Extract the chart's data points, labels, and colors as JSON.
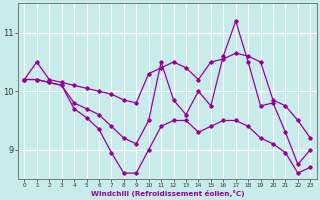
{
  "xlabel": "Windchill (Refroidissement éolien,°C)",
  "background_color": "#c8ecec",
  "line_color": "#990099",
  "grid_color": "#ffffff",
  "xlim": [
    -0.5,
    23.5
  ],
  "ylim": [
    8.5,
    11.5
  ],
  "yticks": [
    9,
    10,
    11
  ],
  "xticks": [
    0,
    1,
    2,
    3,
    4,
    5,
    6,
    7,
    8,
    9,
    10,
    11,
    12,
    13,
    14,
    15,
    16,
    17,
    18,
    19,
    20,
    21,
    22,
    23
  ],
  "series": [
    [
      10.2,
      10.5,
      10.2,
      10.15,
      10.1,
      10.05,
      10.0,
      9.95,
      9.85,
      9.8,
      10.3,
      10.4,
      10.5,
      10.4,
      10.2,
      10.5,
      10.55,
      10.65,
      10.6,
      10.5,
      9.85,
      9.75,
      9.5,
      9.2
    ],
    [
      10.2,
      10.2,
      10.15,
      10.1,
      9.8,
      9.7,
      9.6,
      9.4,
      9.2,
      9.1,
      9.5,
      10.5,
      9.85,
      9.6,
      10.0,
      9.75,
      10.6,
      11.2,
      10.5,
      9.75,
      9.8,
      9.3,
      8.75,
      9.0
    ],
    [
      10.2,
      10.2,
      10.15,
      10.1,
      9.7,
      9.55,
      9.35,
      8.95,
      8.6,
      8.6,
      9.0,
      9.4,
      9.5,
      9.5,
      9.3,
      9.4,
      9.5,
      9.5,
      9.4,
      9.2,
      9.1,
      8.95,
      8.6,
      8.7
    ]
  ]
}
